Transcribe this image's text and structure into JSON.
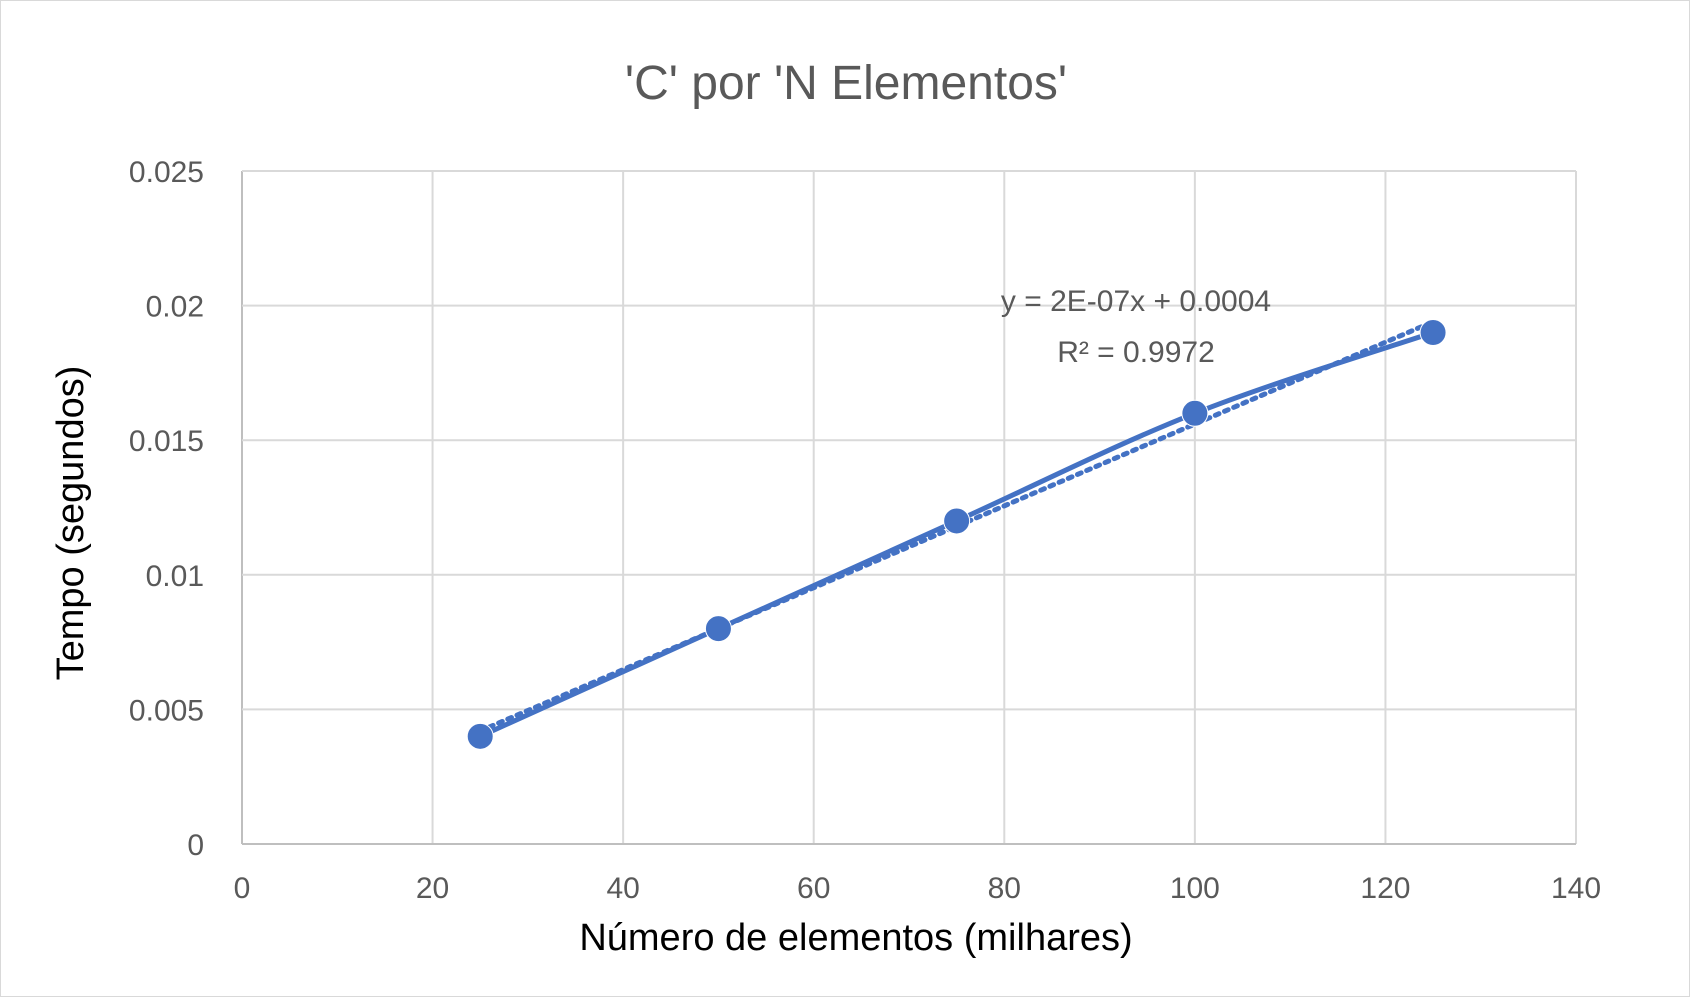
{
  "chart_data": {
    "type": "scatter",
    "title": "'C' por 'N Elementos'",
    "xlabel": "Número de elementos (milhares)",
    "ylabel": "Tempo (segundos)",
    "xlim": [
      0,
      140
    ],
    "ylim": [
      0,
      0.025
    ],
    "x_ticks": [
      "0",
      "20",
      "40",
      "60",
      "80",
      "100",
      "120",
      "140"
    ],
    "y_ticks": [
      "0",
      "0.005",
      "0.01",
      "0.015",
      "0.02",
      "0.025"
    ],
    "grid": true,
    "legend": "none",
    "series": [
      {
        "x": [
          25,
          50,
          75,
          100,
          125
        ],
        "y": [
          0.004,
          0.008,
          0.012,
          0.016,
          0.019
        ],
        "line": "smooth",
        "marker": "circle",
        "color": "#4472c4"
      }
    ],
    "trendline": {
      "type": "linear",
      "style": "dotted",
      "color": "#4472c4",
      "equation": "y = 2E-07x + 0.0004",
      "r_squared": "R² = 0.9972"
    }
  }
}
